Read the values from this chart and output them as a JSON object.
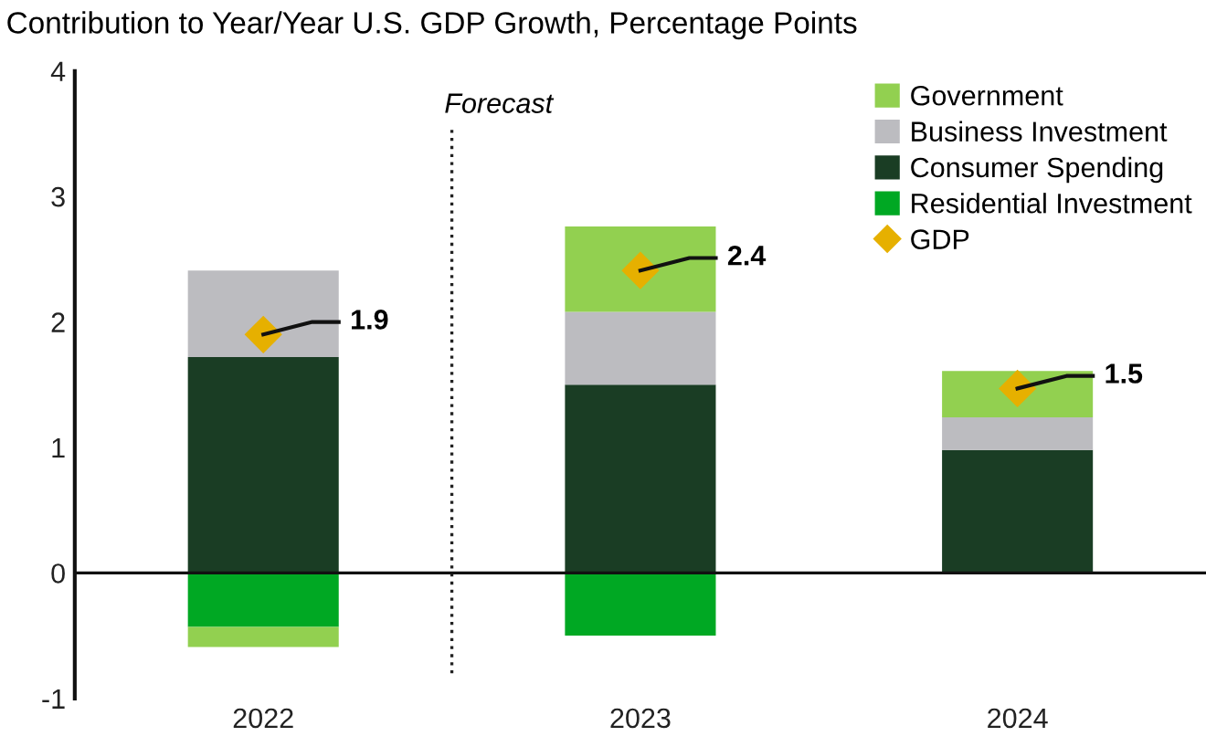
{
  "chart_data": {
    "type": "bar",
    "title": "Contribution to Year/Year U.S. GDP Growth, Percentage Points",
    "x": [
      2022,
      2023,
      2024
    ],
    "xlim": [
      2021.5,
      2024.5
    ],
    "xticks": [
      2022,
      2023,
      2024
    ],
    "ylim": [
      -1,
      4
    ],
    "yticks": [
      {
        "value": -1,
        "label": "-1"
      },
      0,
      1,
      2,
      3,
      4
    ],
    "stacked": true,
    "legend": "top right",
    "series": [
      {
        "name": "Residential Investment",
        "color": "#00a823",
        "values": [
          -0.43,
          -0.5,
          0
        ]
      },
      {
        "name": "Consumer Spending",
        "color": "#1a3d24",
        "values": [
          1.72,
          1.5,
          0.98
        ]
      },
      {
        "name": "Business Investment",
        "color": "#bcbcc0",
        "values": [
          0.69,
          0.58,
          0.26
        ]
      },
      {
        "name": "Government",
        "color": "#92d050",
        "values": [
          -0.16,
          0.68,
          0.37
        ]
      },
      {
        "name": "GDP",
        "type": "scatter",
        "marker": "diamond",
        "color": "#e6b000",
        "values": [
          1.9,
          2.41,
          1.47
        ],
        "value_labels": [
          "1.9",
          "2.4",
          "1.5"
        ]
      }
    ],
    "ref_lines": [
      {
        "axis": "x",
        "value": 2022.5,
        "label": "Forecast",
        "line_style": "dotted",
        "color": "#222222"
      }
    ]
  }
}
